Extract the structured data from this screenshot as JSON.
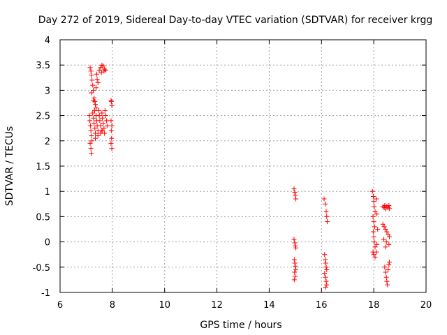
{
  "chart_data": {
    "type": "scatter",
    "title": "Day 272 of 2019, Sidereal Day-to-day VTEC variation (SDTVAR) for receiver krgg",
    "xlabel": "GPS time / hours",
    "ylabel": "SDTVAR / TECUs",
    "xlim": [
      6,
      20
    ],
    "ylim": [
      -1,
      4
    ],
    "xticks": [
      "6",
      "8",
      "10",
      "12",
      "14",
      "16",
      "18",
      "20"
    ],
    "yticks": [
      "-1",
      "-0.5",
      "0",
      "0.5",
      "1",
      "1.5",
      "2",
      "2.5",
      "3",
      "3.5",
      "4"
    ],
    "grid": true,
    "marker": "+",
    "color": "#ff0000",
    "series": [
      {
        "name": "SDTVAR",
        "points": [
          [
            7.15,
            3.45
          ],
          [
            7.18,
            3.38
          ],
          [
            7.2,
            3.3
          ],
          [
            7.22,
            3.2
          ],
          [
            7.25,
            3.1
          ],
          [
            7.27,
            3.0
          ],
          [
            7.2,
            2.95
          ],
          [
            7.3,
            2.85
          ],
          [
            7.33,
            2.78
          ],
          [
            7.35,
            2.72
          ],
          [
            7.38,
            2.65
          ],
          [
            7.4,
            3.32
          ],
          [
            7.42,
            3.22
          ],
          [
            7.45,
            3.15
          ],
          [
            7.38,
            3.05
          ],
          [
            7.28,
            2.8
          ],
          [
            7.32,
            2.6
          ],
          [
            7.12,
            2.5
          ],
          [
            7.14,
            2.4
          ],
          [
            7.16,
            2.3
          ],
          [
            7.18,
            2.2
          ],
          [
            7.2,
            2.1
          ],
          [
            7.22,
            2.0
          ],
          [
            7.15,
            1.95
          ],
          [
            7.18,
            1.85
          ],
          [
            7.2,
            1.75
          ],
          [
            7.25,
            2.55
          ],
          [
            7.28,
            2.45
          ],
          [
            7.3,
            2.35
          ],
          [
            7.33,
            2.25
          ],
          [
            7.35,
            2.15
          ],
          [
            7.38,
            2.5
          ],
          [
            7.4,
            2.4
          ],
          [
            7.42,
            2.3
          ],
          [
            7.45,
            2.2
          ],
          [
            7.48,
            2.6
          ],
          [
            7.5,
            2.5
          ],
          [
            7.52,
            2.4
          ],
          [
            7.55,
            2.3
          ],
          [
            7.58,
            2.2
          ],
          [
            7.6,
            2.55
          ],
          [
            7.62,
            2.45
          ],
          [
            7.65,
            2.35
          ],
          [
            7.68,
            2.25
          ],
          [
            7.7,
            2.15
          ],
          [
            7.5,
            3.4
          ],
          [
            7.55,
            3.45
          ],
          [
            7.6,
            3.5
          ],
          [
            7.65,
            3.48
          ],
          [
            7.7,
            3.42
          ],
          [
            7.75,
            3.4
          ],
          [
            7.58,
            3.35
          ],
          [
            7.68,
            3.38
          ],
          [
            7.72,
            2.6
          ],
          [
            7.75,
            2.5
          ],
          [
            7.78,
            2.4
          ],
          [
            7.8,
            2.3
          ],
          [
            7.62,
            2.2
          ],
          [
            7.55,
            2.15
          ],
          [
            7.45,
            2.1
          ],
          [
            7.35,
            2.05
          ],
          [
            7.95,
            2.8
          ],
          [
            7.98,
            2.7
          ],
          [
            7.95,
            2.4
          ],
          [
            7.98,
            2.3
          ],
          [
            7.96,
            2.2
          ],
          [
            7.97,
            2.05
          ],
          [
            7.95,
            1.95
          ],
          [
            7.98,
            1.85
          ],
          [
            7.96,
            2.78
          ],
          [
            14.95,
            1.05
          ],
          [
            14.98,
            0.98
          ],
          [
            15.0,
            0.92
          ],
          [
            15.02,
            0.85
          ],
          [
            14.95,
            0.05
          ],
          [
            14.98,
            -0.02
          ],
          [
            15.0,
            -0.08
          ],
          [
            15.02,
            -0.12
          ],
          [
            14.96,
            -0.35
          ],
          [
            14.98,
            -0.42
          ],
          [
            15.0,
            -0.48
          ],
          [
            15.02,
            -0.55
          ],
          [
            14.97,
            -0.6
          ],
          [
            14.99,
            -0.68
          ],
          [
            14.96,
            -0.75
          ],
          [
            16.1,
            0.85
          ],
          [
            16.15,
            0.75
          ],
          [
            16.18,
            0.6
          ],
          [
            16.2,
            0.5
          ],
          [
            16.22,
            0.4
          ],
          [
            16.12,
            -0.25
          ],
          [
            16.14,
            -0.35
          ],
          [
            16.16,
            -0.42
          ],
          [
            16.18,
            -0.5
          ],
          [
            16.2,
            -0.55
          ],
          [
            16.12,
            -0.62
          ],
          [
            16.15,
            -0.7
          ],
          [
            16.18,
            -0.78
          ],
          [
            16.2,
            -0.85
          ],
          [
            16.15,
            -0.9
          ],
          [
            17.95,
            1.0
          ],
          [
            17.98,
            0.9
          ],
          [
            18.0,
            0.8
          ],
          [
            18.02,
            0.7
          ],
          [
            18.05,
            0.6
          ],
          [
            17.97,
            0.5
          ],
          [
            18.0,
            0.4
          ],
          [
            18.03,
            0.3
          ],
          [
            17.98,
            0.2
          ],
          [
            18.0,
            0.1
          ],
          [
            18.02,
            0.0
          ],
          [
            18.05,
            -0.1
          ],
          [
            17.97,
            -0.2
          ],
          [
            18.0,
            -0.25
          ],
          [
            18.05,
            -0.3
          ],
          [
            18.1,
            0.85
          ],
          [
            18.12,
            0.55
          ],
          [
            18.15,
            0.25
          ],
          [
            18.12,
            -0.05
          ],
          [
            18.1,
            -0.2
          ],
          [
            18.35,
            0.7
          ],
          [
            18.4,
            0.68
          ],
          [
            18.45,
            0.65
          ],
          [
            18.5,
            0.7
          ],
          [
            18.55,
            0.68
          ],
          [
            18.6,
            0.66
          ],
          [
            18.42,
            0.72
          ],
          [
            18.58,
            0.72
          ],
          [
            18.35,
            0.35
          ],
          [
            18.4,
            0.3
          ],
          [
            18.45,
            0.25
          ],
          [
            18.5,
            0.2
          ],
          [
            18.55,
            0.15
          ],
          [
            18.6,
            0.1
          ],
          [
            18.38,
            0.05
          ],
          [
            18.48,
            0.0
          ],
          [
            18.58,
            -0.05
          ],
          [
            18.45,
            -0.1
          ],
          [
            18.42,
            -0.5
          ],
          [
            18.45,
            -0.6
          ],
          [
            18.48,
            -0.7
          ],
          [
            18.5,
            -0.78
          ],
          [
            18.52,
            -0.85
          ],
          [
            18.55,
            -0.55
          ],
          [
            18.58,
            -0.45
          ],
          [
            18.6,
            -0.4
          ]
        ]
      }
    ]
  }
}
